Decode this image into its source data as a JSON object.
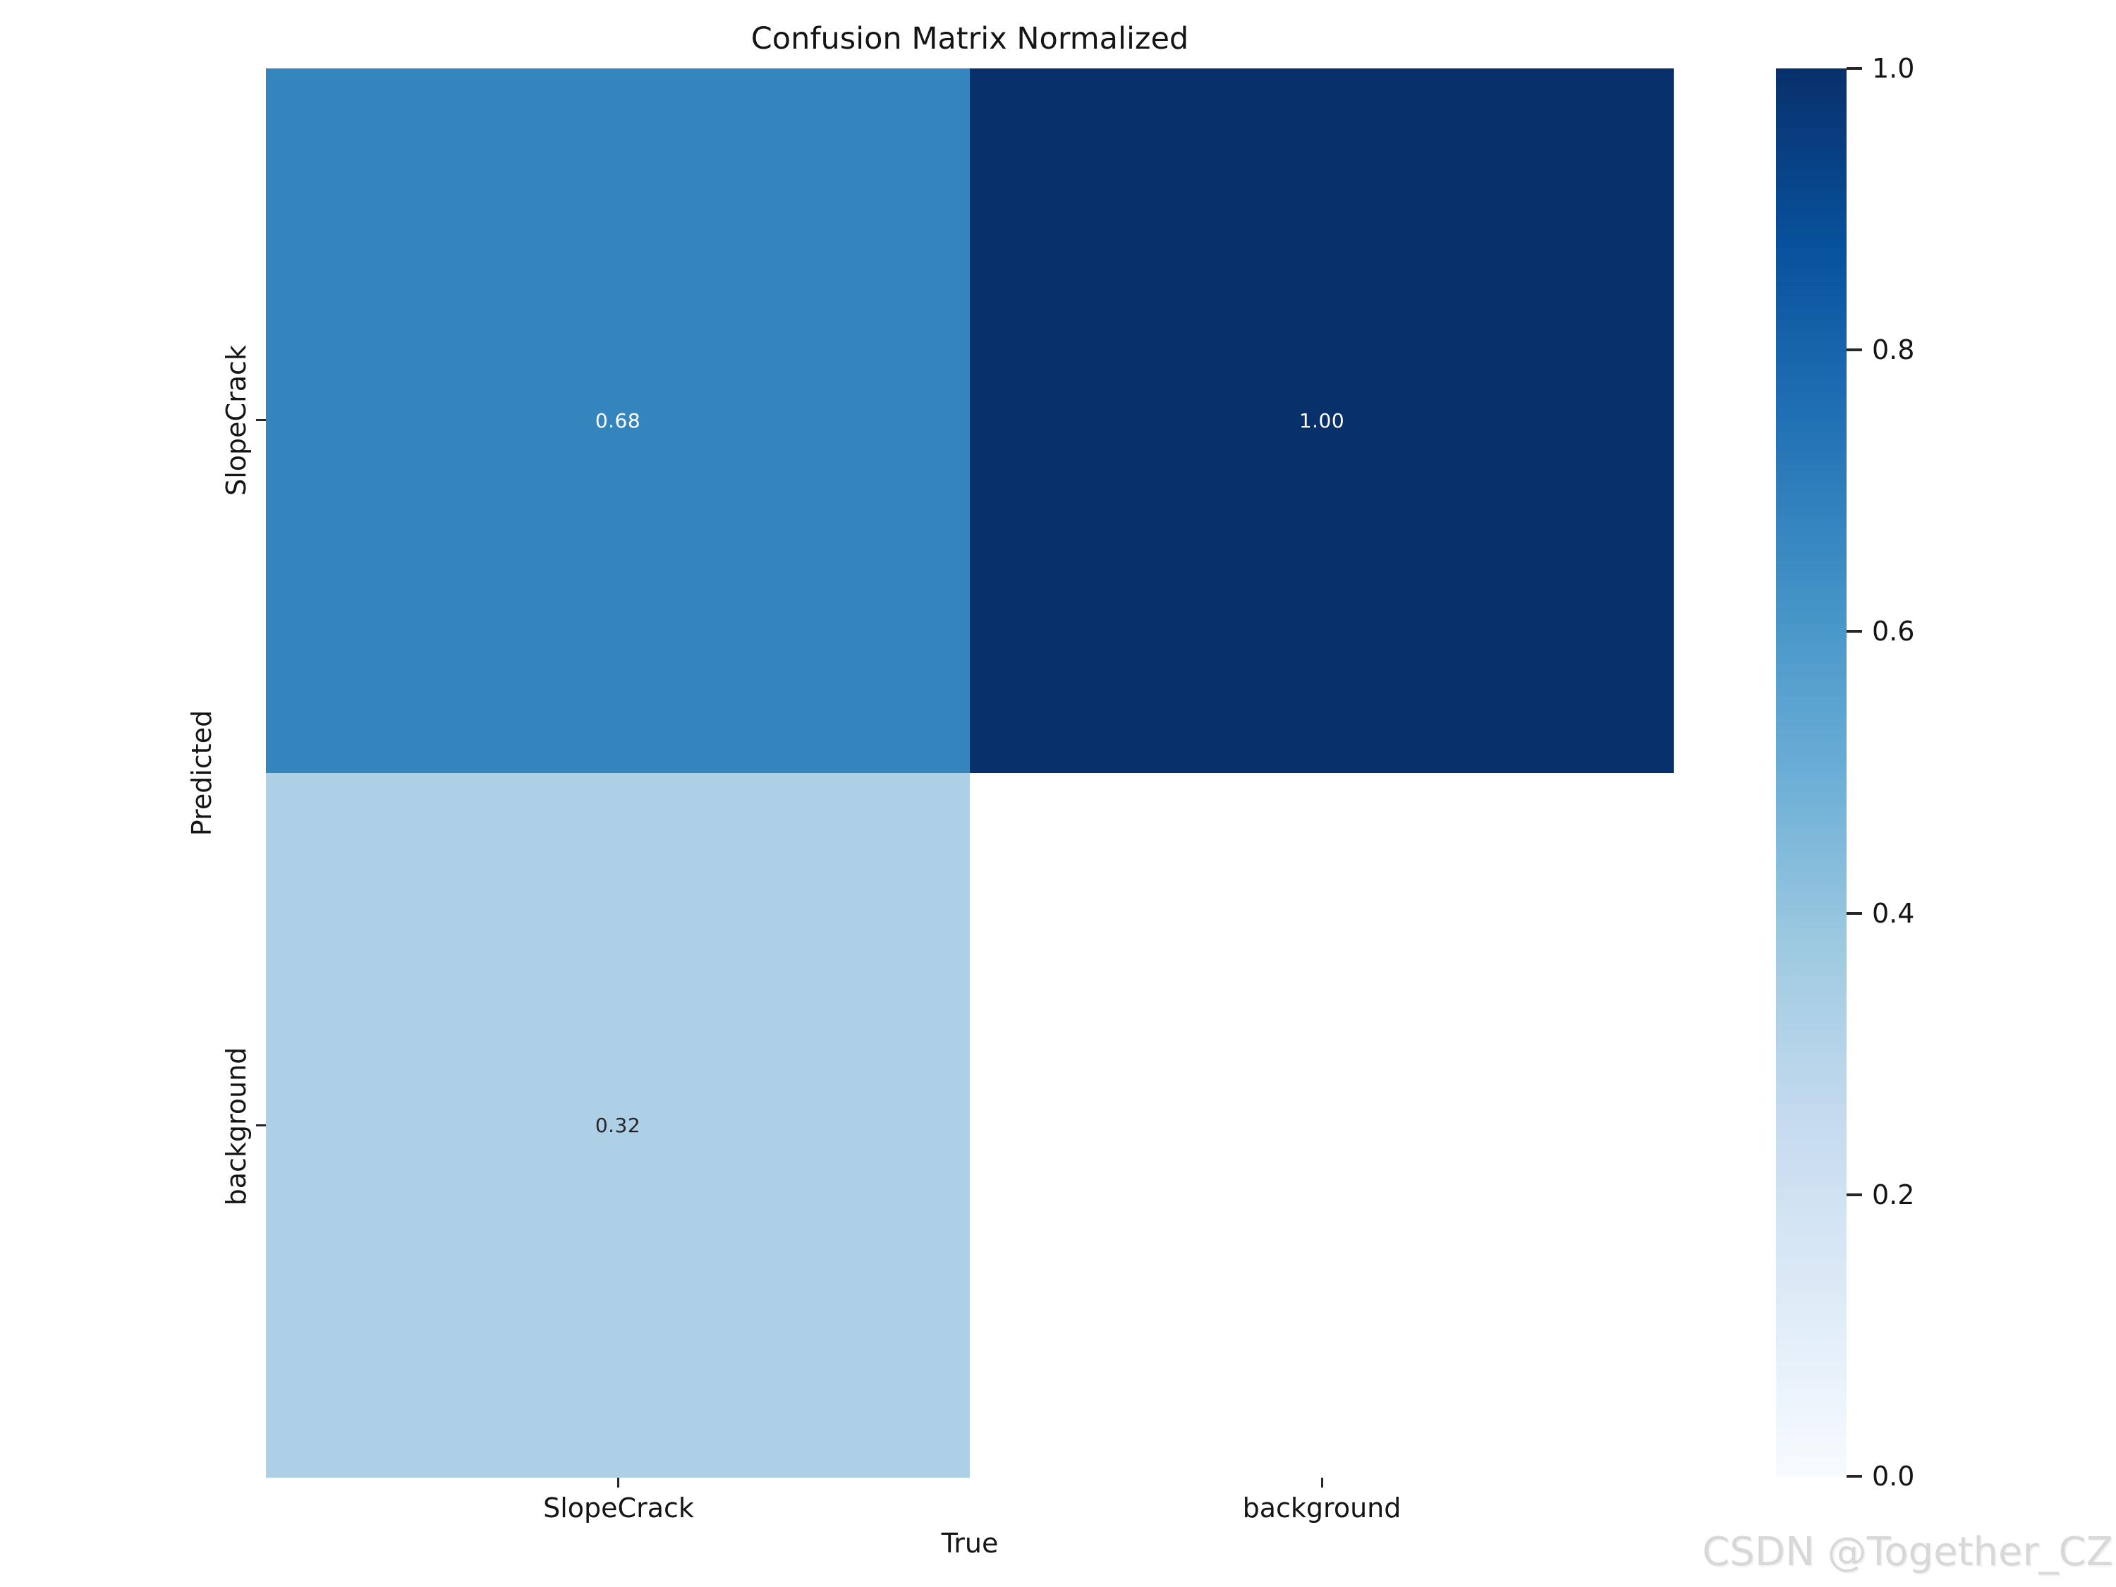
{
  "figure": {
    "title": "Confusion Matrix Normalized",
    "watermark": "CSDN @Together_CZ"
  },
  "axes": {
    "x_label": "True",
    "y_label": "Predicted",
    "x_tick_labels": [
      "SlopeCrack",
      "background"
    ],
    "y_tick_labels": [
      "SlopeCrack",
      "background"
    ]
  },
  "colorbar": {
    "tick_labels": [
      "1.0",
      "0.8",
      "0.6",
      "0.4",
      "0.2",
      "0.0"
    ],
    "gradient_stops": [
      "#f7fbff",
      "#deebf7",
      "#c6dbef",
      "#9ecae1",
      "#6baed6",
      "#4292c6",
      "#2171b5",
      "#08519c",
      "#08306b"
    ]
  },
  "colors": {
    "background": "#ffffff",
    "text": "#151515",
    "tick": "#262626",
    "watermark": "#d8d8d8",
    "cell_high": "#08306b",
    "cell_mid": "#3484be",
    "cell_low": "#aed0e6",
    "cell_empty": "#ffffff"
  },
  "chart_data": {
    "type": "heatmap",
    "title": "Confusion Matrix Normalized",
    "xlabel": "True",
    "ylabel": "Predicted",
    "x_categories": [
      "SlopeCrack",
      "background"
    ],
    "y_categories": [
      "SlopeCrack",
      "background"
    ],
    "values": [
      [
        0.68,
        1.0
      ],
      [
        0.32,
        null
      ]
    ],
    "vmin": 0.0,
    "vmax": 1.0,
    "colormap": "Blues",
    "legend_position": "right-colorbar",
    "grid": false,
    "cells": [
      {
        "row": 0,
        "col": 0,
        "label": "0.68",
        "bg": "#3484be",
        "fg": "#ffffff"
      },
      {
        "row": 0,
        "col": 1,
        "label": "1.00",
        "bg": "#08306b",
        "fg": "#ffffff"
      },
      {
        "row": 1,
        "col": 0,
        "label": "0.32",
        "bg": "#aed0e6",
        "fg": "#262626"
      },
      {
        "row": 1,
        "col": 1,
        "label": "",
        "bg": "#ffffff",
        "fg": "#262626"
      }
    ]
  }
}
